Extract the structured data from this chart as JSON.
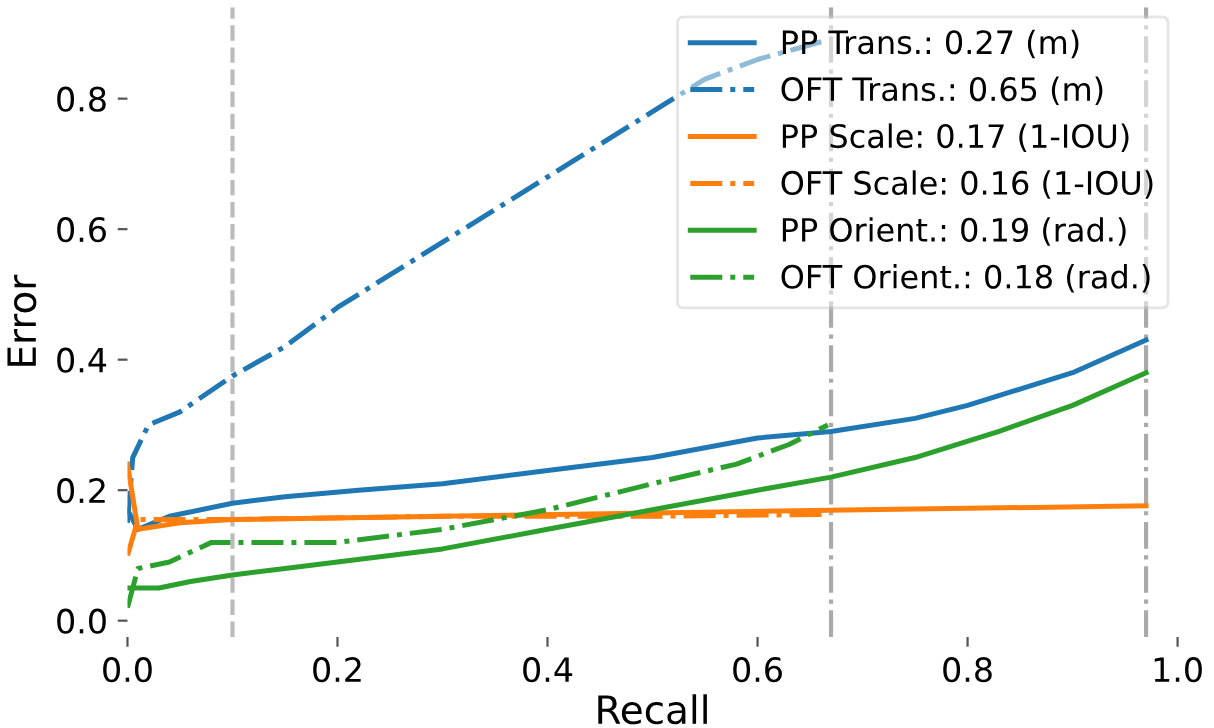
{
  "chart_data": {
    "type": "line",
    "xlabel": "Recall",
    "ylabel": "Error",
    "xlim": [
      0,
      1.0
    ],
    "ylim": [
      -0.025,
      0.94
    ],
    "xticks": [
      {
        "value": 0,
        "label": "0.0"
      },
      0.2,
      0.4,
      0.6,
      0.8,
      {
        "value": 1,
        "label": "1.0"
      }
    ],
    "yticks": [
      {
        "value": 0,
        "label": "0.0"
      },
      0.2,
      0.4,
      0.6,
      0.8
    ],
    "grid": false,
    "legend": "top right",
    "marker": "none",
    "ref_lines": [
      {
        "axis": "x",
        "value": 0.1,
        "color": "#bbbbbb",
        "line_style": "dashed"
      },
      {
        "axis": "x",
        "value": 0.67,
        "color": "#aaaaaa",
        "line_style": "dashdot"
      },
      {
        "axis": "x",
        "value": 0.97,
        "color": "#aaaaaa",
        "line_style": "dashdot"
      }
    ],
    "series": [
      {
        "name": "PP Trans.: 0.27 (m)",
        "color": "#1f77b4",
        "line_style": "solid",
        "x": [
          0,
          0.01,
          0.04,
          0.1,
          0.15,
          0.22,
          0.3,
          0.4,
          0.5,
          0.6,
          0.67,
          0.75,
          0.8,
          0.9,
          0.97
        ],
        "values": [
          0.17,
          0.14,
          0.16,
          0.18,
          0.19,
          0.2,
          0.21,
          0.23,
          0.25,
          0.28,
          0.29,
          0.31,
          0.33,
          0.38,
          0.43
        ]
      },
      {
        "name": "OFT Trans.: 0.65 (m)",
        "color": "#1f77b4",
        "line_style": "dashdot",
        "x": [
          0,
          0.005,
          0.02,
          0.05,
          0.1,
          0.15,
          0.2,
          0.27,
          0.35,
          0.42,
          0.5,
          0.55,
          0.6,
          0.667
        ],
        "values": [
          0.15,
          0.25,
          0.3,
          0.32,
          0.375,
          0.42,
          0.48,
          0.55,
          0.63,
          0.7,
          0.78,
          0.83,
          0.86,
          0.89
        ]
      },
      {
        "name": "PP Scale: 0.17 (1-IOU)",
        "color": "#ff7f0e",
        "line_style": "solid",
        "x": [
          0,
          0.01,
          0.05,
          0.1,
          0.3,
          0.5,
          0.7,
          0.97
        ],
        "values": [
          0.24,
          0.14,
          0.15,
          0.155,
          0.16,
          0.165,
          0.17,
          0.176
        ]
      },
      {
        "name": "OFT Scale: 0.16 (1-IOU)",
        "color": "#ff7f0e",
        "line_style": "dashdot",
        "x": [
          0,
          0.01,
          0.1,
          0.3,
          0.5,
          0.667
        ],
        "values": [
          0.1,
          0.155,
          0.155,
          0.16,
          0.16,
          0.163
        ]
      },
      {
        "name": "PP Orient.: 0.19 (rad.)",
        "color": "#2ca02c",
        "line_style": "solid",
        "x": [
          0,
          0.03,
          0.06,
          0.1,
          0.15,
          0.2,
          0.3,
          0.4,
          0.5,
          0.6,
          0.67,
          0.75,
          0.83,
          0.9,
          0.97
        ],
        "values": [
          0.05,
          0.05,
          0.06,
          0.07,
          0.08,
          0.09,
          0.11,
          0.14,
          0.17,
          0.2,
          0.22,
          0.25,
          0.29,
          0.33,
          0.38
        ]
      },
      {
        "name": "OFT Orient.: 0.18 (rad.)",
        "color": "#2ca02c",
        "line_style": "dashdot",
        "x": [
          0,
          0.01,
          0.04,
          0.08,
          0.1,
          0.2,
          0.3,
          0.4,
          0.5,
          0.58,
          0.63,
          0.667
        ],
        "values": [
          0.02,
          0.08,
          0.09,
          0.12,
          0.12,
          0.12,
          0.14,
          0.17,
          0.21,
          0.24,
          0.27,
          0.3
        ]
      }
    ]
  }
}
